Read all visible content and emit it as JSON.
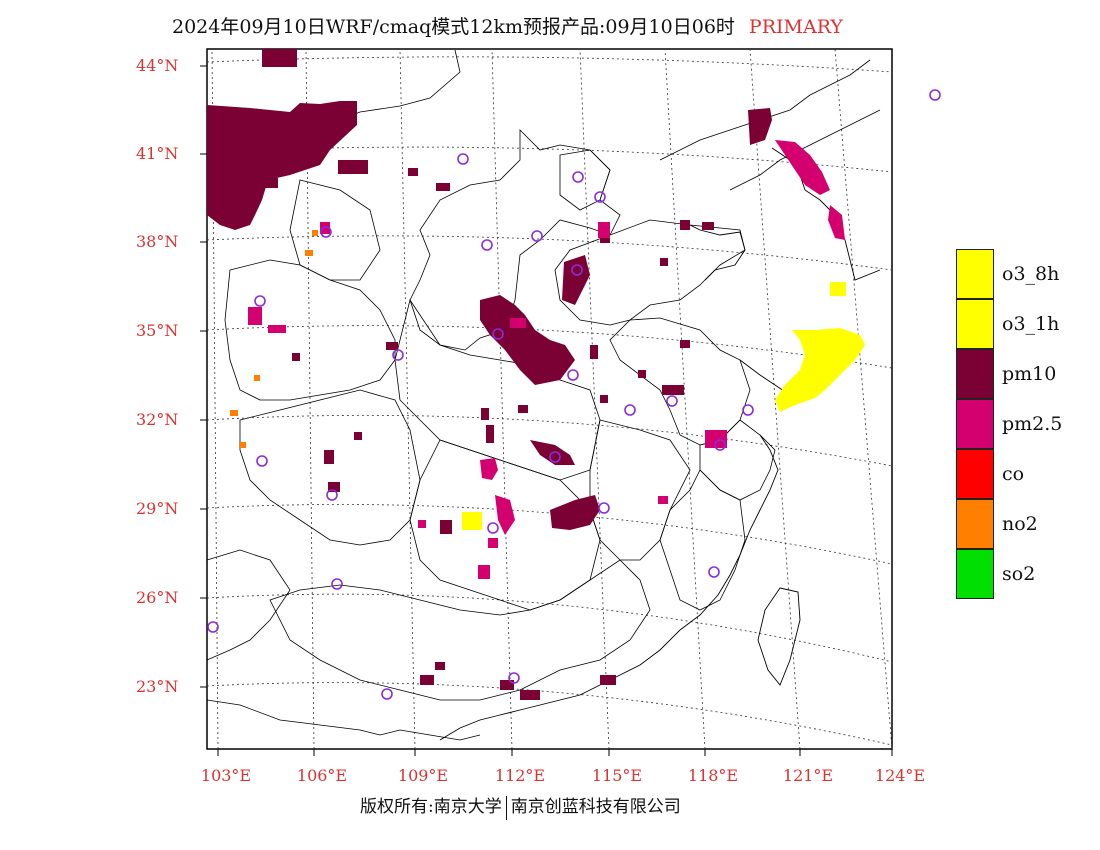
{
  "title": {
    "main": "2024年09月10日WRF/cmaq模式12km预报产品:09月10日06时",
    "tag": "PRIMARY"
  },
  "footer": {
    "left": "版权所有:南京大学",
    "right": "南京创蓝科技有限公司"
  },
  "lat_labels": [
    "44°N",
    "41°N",
    "38°N",
    "35°N",
    "32°N",
    "29°N",
    "26°N",
    "23°N"
  ],
  "lon_labels": [
    "103°E",
    "106°E",
    "109°E",
    "112°E",
    "115°E",
    "118°E",
    "121°E",
    "124°E"
  ],
  "legend": [
    {
      "label": "o3_8h",
      "color": "#ffff00"
    },
    {
      "label": "o3_1h",
      "color": "#ffff00"
    },
    {
      "label": "pm10",
      "color": "#7b0033"
    },
    {
      "label": "pm2.5",
      "color": "#d4006f"
    },
    {
      "label": "co",
      "color": "#ff0000"
    },
    {
      "label": "no2",
      "color": "#ff8000"
    },
    {
      "label": "so2",
      "color": "#00e000"
    }
  ],
  "colors": {
    "label_red": "#e03030",
    "station_circle": "#8a2be2"
  }
}
